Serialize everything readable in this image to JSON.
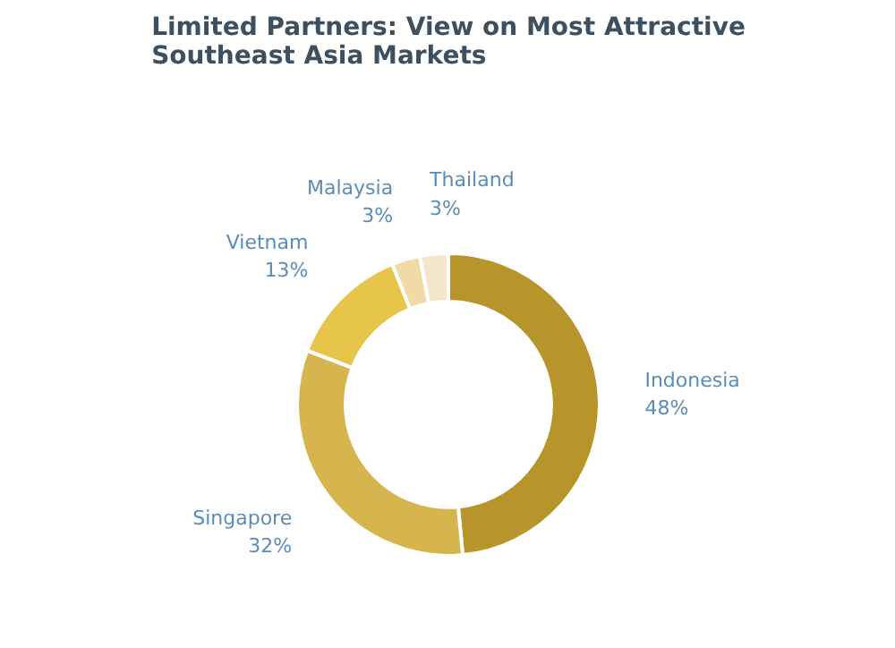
{
  "chart_data": {
    "type": "donut",
    "title": "Limited Partners: View on Most Attractive\nSoutheast Asia Markets",
    "categories": [
      "Indonesia",
      "Singapore",
      "Vietnam",
      "Malaysia",
      "Thailand"
    ],
    "values": [
      48,
      32,
      13,
      3,
      3
    ],
    "value_labels": [
      "48%",
      "32%",
      "13%",
      "3%",
      "3%"
    ],
    "colors": [
      "#b8952a",
      "#d6b44e",
      "#e6c54a",
      "#f0dba6",
      "#f4e6cc"
    ]
  }
}
